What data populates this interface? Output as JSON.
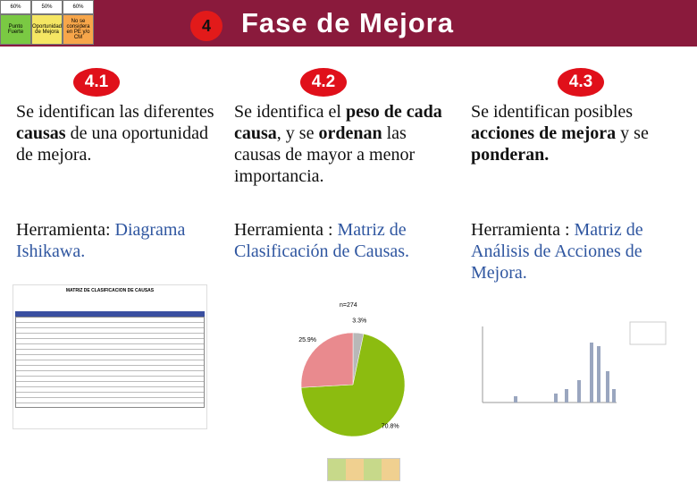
{
  "header": {
    "legend": [
      [
        "60%",
        "50%",
        "60%"
      ],
      [
        "Punto Fuerte",
        "Oportunidad de Mejora",
        "No se considera en PE y/o CM"
      ]
    ],
    "badge": "4",
    "title": "Fase de Mejora"
  },
  "steps": [
    {
      "number": "4.1",
      "description": [
        {
          "text": "Se identifican las diferentes ",
          "style": "normal"
        },
        {
          "text": "causas",
          "style": "bold"
        },
        {
          "text": " de una oportunidad de mejora.",
          "style": "normal"
        }
      ],
      "tool": [
        {
          "text": "Herramienta: ",
          "style": "normal"
        },
        {
          "text": "Diagrama Ishikawa.",
          "style": "blue"
        }
      ]
    },
    {
      "number": "4.2",
      "description": [
        {
          "text": "Se identifica el ",
          "style": "normal"
        },
        {
          "text": "peso de cada causa",
          "style": "bold"
        },
        {
          "text": ", y se ",
          "style": "normal"
        },
        {
          "text": "ordenan",
          "style": "bold"
        },
        {
          "text": " las causas de mayor a menor importancia.",
          "style": "normal"
        }
      ],
      "tool": [
        {
          "text": "Herramienta : ",
          "style": "normal"
        },
        {
          "text": "Matriz de Clasificación de Causas.",
          "style": "blue"
        }
      ]
    },
    {
      "number": "4.3",
      "description": [
        {
          "text": "Se identifican posibles ",
          "style": "normal"
        },
        {
          "text": "acciones de mejora",
          "style": "bold"
        },
        {
          "text": " y se ",
          "style": "normal"
        },
        {
          "text": "ponderan.",
          "style": "bold"
        }
      ],
      "tool": [
        {
          "text": "Herramienta : ",
          "style": "normal"
        },
        {
          "text": "Matriz de Análisis de Acciones de Mejora.",
          "style": "blue"
        }
      ]
    }
  ],
  "thumbnails": {
    "matrix_title": "MATRIZ DE CLASIFICACION DE CAUSAS",
    "pie": {
      "title": "n=274",
      "values": [
        3.3,
        70.8,
        25.9
      ],
      "value_labels": [
        "3.3%",
        "70.8%",
        "25.9%"
      ],
      "colors": [
        "#b8b8b8",
        "#8cbc10",
        "#e98a8e"
      ]
    }
  }
}
